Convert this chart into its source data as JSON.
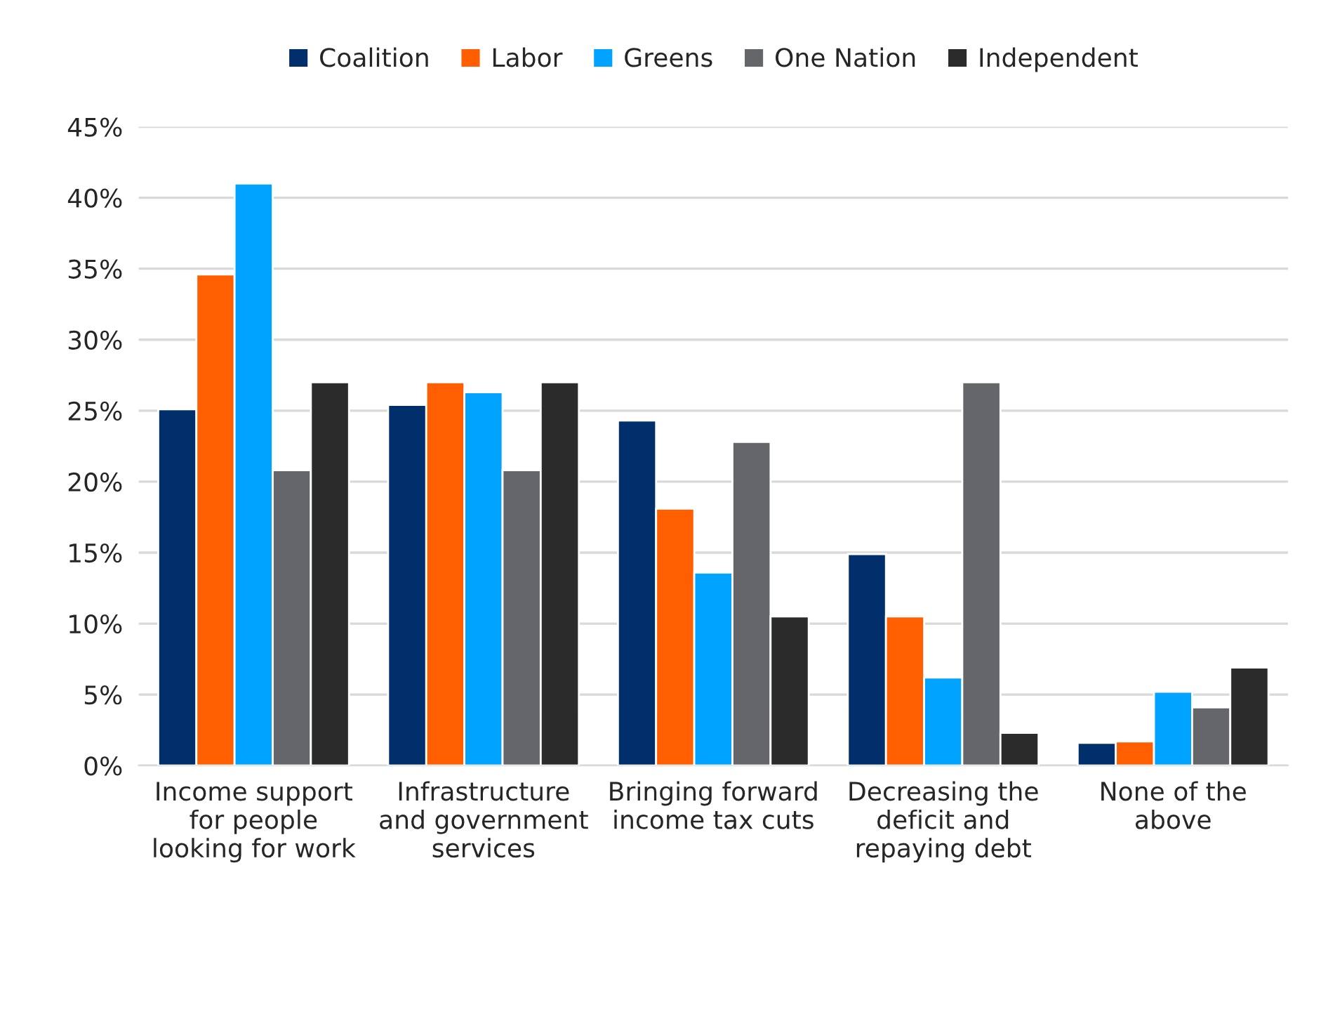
{
  "chart_data": {
    "type": "bar",
    "categories": [
      "Income support\nfor people\nlooking for work",
      "Infrastructure\nand government\nservices",
      "Bringing forward\nincome tax cuts",
      "Decreasing the\ndeficit and\nrepaying debt",
      "None of the\nabove"
    ],
    "series": [
      {
        "name": "Coalition",
        "color": "#002f6c",
        "values": [
          25.1,
          25.4,
          24.3,
          14.9,
          1.6
        ]
      },
      {
        "name": "Labor",
        "color": "#ff5f00",
        "values": [
          34.6,
          27.0,
          18.1,
          10.5,
          1.7
        ]
      },
      {
        "name": "Greens",
        "color": "#00a3ff",
        "values": [
          41.0,
          26.3,
          13.6,
          6.2,
          5.2
        ]
      },
      {
        "name": "One Nation",
        "color": "#64666a",
        "values": [
          20.8,
          20.8,
          22.8,
          27.0,
          4.1
        ]
      },
      {
        "name": "Independent",
        "color": "#2b2b2b",
        "values": [
          27.0,
          27.0,
          10.5,
          2.3,
          6.9
        ]
      }
    ],
    "ylim": [
      0,
      45
    ],
    "yticks": [
      {
        "value": 0,
        "label": "0%"
      },
      {
        "value": 5,
        "label": "5%"
      },
      {
        "value": 10,
        "label": "10%"
      },
      {
        "value": 15,
        "label": "15%"
      },
      {
        "value": 20,
        "label": "20%"
      },
      {
        "value": 25,
        "label": "25%"
      },
      {
        "value": 30,
        "label": "30%"
      },
      {
        "value": 35,
        "label": "35%"
      },
      {
        "value": 40,
        "label": "40%"
      },
      {
        "value": 45,
        "label": "45%"
      }
    ],
    "grid": "y",
    "legend": "top"
  }
}
